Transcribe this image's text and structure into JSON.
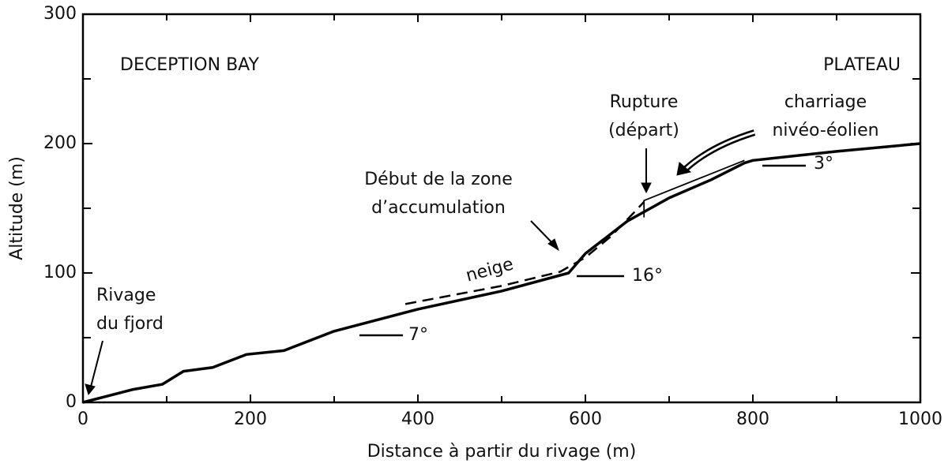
{
  "chart_data": {
    "type": "line",
    "xlabel": "Distance à partir du rivage (m)",
    "ylabel": "Altitude (m)",
    "xlim": [
      0,
      1000
    ],
    "ylim": [
      0,
      300
    ],
    "xticks": [
      0,
      200,
      400,
      600,
      800,
      1000
    ],
    "xminorticks": [
      100,
      300,
      500,
      700,
      900
    ],
    "yticks": [
      0,
      100,
      200,
      300
    ],
    "yminorticks": [
      50,
      150,
      250
    ],
    "series": [
      {
        "color": "#000000",
        "style": "solid",
        "width": 3.5,
        "x": [
          0,
          30,
          60,
          95,
          120,
          155,
          195,
          240,
          300,
          400,
          500,
          580,
          600,
          650,
          700,
          750,
          790,
          800,
          900,
          1000
        ],
        "values": [
          0,
          5,
          10,
          14,
          24,
          27,
          37,
          40,
          55,
          72,
          86,
          100,
          115,
          140,
          158,
          172,
          185,
          187,
          194,
          200
        ]
      },
      {
        "color": "#000000",
        "style": "dashed",
        "width": 2.5,
        "x": [
          385,
          500,
          570,
          600,
          630,
          660,
          670
        ],
        "values": [
          76,
          90,
          101,
          112,
          128,
          148,
          155
        ]
      },
      {
        "color": "#000000",
        "style": "solid",
        "width": 1.8,
        "x": [
          670,
          670,
          790
        ],
        "values": [
          143,
          156,
          187
        ]
      }
    ],
    "annotations": [
      [
        "DECEPTION BAY"
      ],
      [
        "PLATEAU"
      ],
      [
        "Rupture",
        "(départ)"
      ],
      [
        "charriage",
        "nivéo-éolien"
      ],
      [
        "Début de la zone",
        "d’accumulation"
      ],
      [
        "neige"
      ],
      [
        "Rivage",
        "du fjord"
      ],
      [
        "7°"
      ],
      [
        "16°"
      ],
      [
        "3°"
      ]
    ]
  }
}
